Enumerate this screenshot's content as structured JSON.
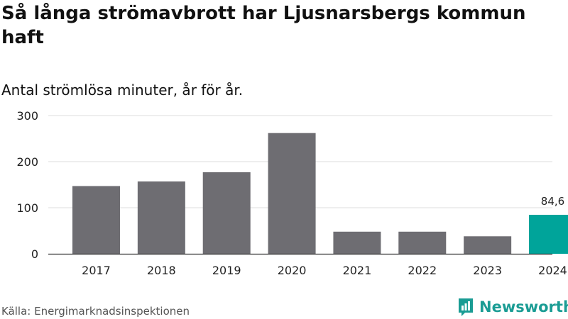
{
  "header": {
    "title": "Så långa strömavbrott har Ljusnarsbergs kommun haft",
    "subtitle": "Antal strömlösa minuter, år för år."
  },
  "footer": {
    "source": "Källa: Energimarknadsinspektionen",
    "brand": "Newsworthy",
    "brand_icon": "newsworthy-logo-icon"
  },
  "colors": {
    "bar_default": "#6e6d72",
    "bar_highlight": "#00a49a",
    "grid": "#dddddd",
    "brand": "#1a9c94"
  },
  "chart_data": {
    "type": "bar",
    "title": "Så långa strömavbrott har Ljusnarsbergs kommun haft",
    "subtitle": "Antal strömlösa minuter, år för år.",
    "xlabel": "",
    "ylabel": "",
    "categories": [
      "2017",
      "2018",
      "2019",
      "2020",
      "2021",
      "2022",
      "2023",
      "2024"
    ],
    "values": [
      147,
      157,
      177,
      262,
      48,
      48,
      38,
      84.6
    ],
    "highlight_index": 7,
    "data_labels": [
      {
        "index": 7,
        "text": "84,6"
      }
    ],
    "ylim": [
      0,
      300
    ],
    "yticks": [
      "0",
      "100",
      "200",
      "300"
    ],
    "grid": true,
    "legend": "none"
  }
}
